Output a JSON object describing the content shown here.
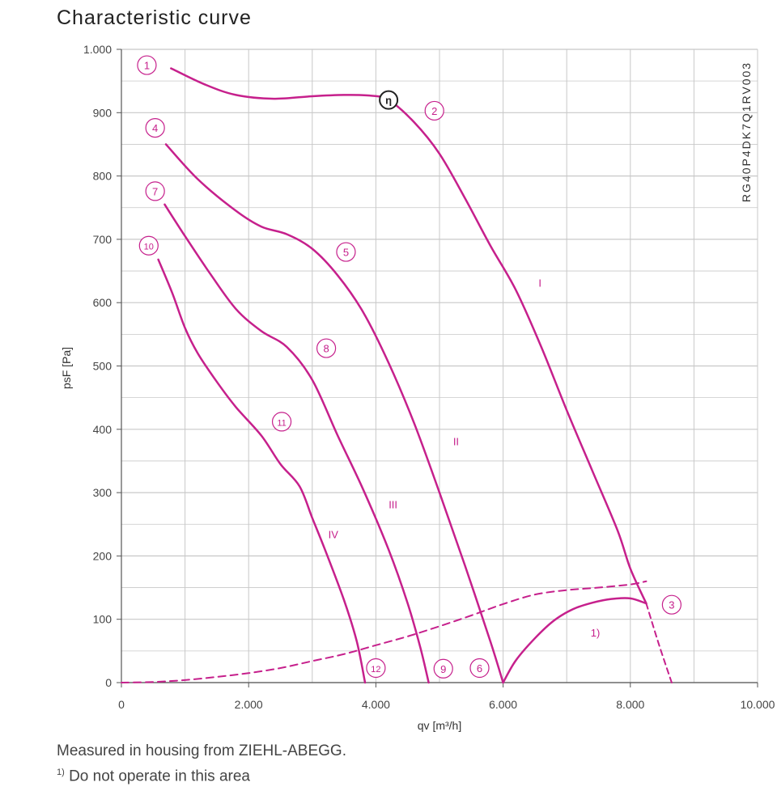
{
  "page": {
    "title": "Characteristic curve",
    "footnote_line1": "Measured in housing from ZIEHL-ABEGG.",
    "footnote_marker": "1)",
    "footnote_line2": "Do not operate in this area",
    "model_code": "RG40P4DK7Q1RV003"
  },
  "colors": {
    "curve": "#c6208c",
    "grid": "#c8c8c8",
    "axis": "#555555",
    "text": "#333333"
  },
  "chart_data": {
    "type": "line",
    "title": "Characteristic curve",
    "xlabel": "qv [m³/h]",
    "ylabel": "psF [Pa]",
    "xlim": [
      0,
      10000
    ],
    "ylim": [
      0,
      1000
    ],
    "grid": true,
    "x_ticks": [
      0,
      2000,
      4000,
      6000,
      8000,
      10000
    ],
    "x_tick_labels": [
      "0",
      "2.000",
      "4.000",
      "6.000",
      "8.000",
      "10.000"
    ],
    "y_ticks": [
      0,
      100,
      200,
      300,
      400,
      500,
      600,
      700,
      800,
      900,
      1000
    ],
    "y_tick_labels": [
      "0",
      "100",
      "200",
      "300",
      "400",
      "500",
      "600",
      "700",
      "800",
      "900",
      "1.000"
    ],
    "series": [
      {
        "name": "I",
        "style": "solid",
        "x": [
          780,
          1300,
          1800,
          2400,
          3000,
          3500,
          3900,
          4200,
          4600,
          5000,
          5400,
          5800,
          6200,
          6600,
          7000,
          7400,
          7800,
          8000,
          8250
        ],
        "y": [
          970,
          945,
          928,
          922,
          926,
          928,
          927,
          920,
          885,
          835,
          765,
          690,
          620,
          530,
          430,
          335,
          240,
          180,
          125
        ]
      },
      {
        "name": "II",
        "style": "solid",
        "x": [
          700,
          1200,
          1800,
          2200,
          2600,
          3000,
          3400,
          3800,
          4200,
          4600,
          5000,
          5400,
          5800,
          6000
        ],
        "y": [
          850,
          795,
          745,
          720,
          708,
          685,
          643,
          585,
          505,
          410,
          300,
          185,
          65,
          0
        ]
      },
      {
        "name": "III",
        "style": "solid",
        "x": [
          680,
          1000,
          1400,
          1800,
          2200,
          2600,
          3000,
          3400,
          3800,
          4200,
          4500,
          4700,
          4830
        ],
        "y": [
          755,
          705,
          645,
          590,
          555,
          530,
          478,
          390,
          305,
          210,
          125,
          55,
          0
        ]
      },
      {
        "name": "IV",
        "style": "solid",
        "x": [
          580,
          800,
          1000,
          1200,
          1500,
          1800,
          2200,
          2500,
          2800,
          3000,
          3200,
          3500,
          3700,
          3830
        ],
        "y": [
          668,
          615,
          560,
          520,
          475,
          435,
          390,
          345,
          310,
          260,
          210,
          130,
          65,
          0
        ]
      },
      {
        "name": "1)",
        "style": "solid",
        "x": [
          6000,
          6200,
          6500,
          6800,
          7100,
          7400,
          7700,
          8000,
          8250
        ],
        "y": [
          0,
          35,
          70,
          98,
          116,
          126,
          132,
          133,
          125
        ]
      },
      {
        "name": "system_curve",
        "style": "dashed",
        "x": [
          0,
          500,
          1000,
          1500,
          2000,
          2500,
          3000,
          3500,
          4000,
          4500,
          5000,
          5500,
          6000,
          6500,
          7000,
          7500,
          8000,
          8250
        ],
        "y": [
          0,
          1,
          4,
          9,
          15,
          23,
          34,
          45,
          59,
          73,
          89,
          106,
          124,
          139,
          146,
          150,
          155,
          160
        ]
      },
      {
        "name": "limit",
        "style": "dashed",
        "x": [
          8250,
          8450,
          8650
        ],
        "y": [
          125,
          60,
          0
        ]
      }
    ],
    "annotations": [
      {
        "text": "1",
        "kind": "circled",
        "x": 400,
        "y": 975
      },
      {
        "text": "2",
        "kind": "circled",
        "x": 4920,
        "y": 903
      },
      {
        "text": "3",
        "kind": "circled",
        "x": 8650,
        "y": 123
      },
      {
        "text": "4",
        "kind": "circled",
        "x": 530,
        "y": 876
      },
      {
        "text": "5",
        "kind": "circled",
        "x": 3530,
        "y": 680
      },
      {
        "text": "6",
        "kind": "circled",
        "x": 5630,
        "y": 23
      },
      {
        "text": "7",
        "kind": "circled",
        "x": 530,
        "y": 776
      },
      {
        "text": "8",
        "kind": "circled",
        "x": 3220,
        "y": 528
      },
      {
        "text": "9",
        "kind": "circled",
        "x": 5060,
        "y": 22
      },
      {
        "text": "10",
        "kind": "circled",
        "x": 430,
        "y": 690
      },
      {
        "text": "11",
        "kind": "circled",
        "x": 2520,
        "y": 412
      },
      {
        "text": "12",
        "kind": "circled",
        "x": 4000,
        "y": 23
      },
      {
        "text": "η",
        "kind": "circled-bold",
        "x": 4200,
        "y": 920
      },
      {
        "text": "I",
        "kind": "roman",
        "x": 6580,
        "y": 625
      },
      {
        "text": "II",
        "kind": "roman",
        "x": 5260,
        "y": 375
      },
      {
        "text": "III",
        "kind": "roman",
        "x": 4270,
        "y": 275
      },
      {
        "text": "IV",
        "kind": "roman",
        "x": 3330,
        "y": 228
      },
      {
        "text": "1)",
        "kind": "roman",
        "x": 7450,
        "y": 73
      }
    ]
  }
}
